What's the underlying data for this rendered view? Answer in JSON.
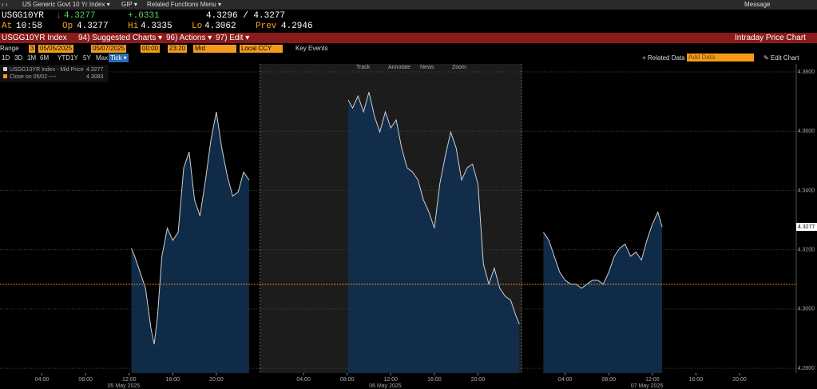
{
  "topbar": {
    "security": "US Generic Govt 10 Yr Index ▾",
    "gip": "GIP ▾",
    "related": "Related Functions Menu ▾",
    "message": "Message"
  },
  "quote": {
    "ticker": "USGG10YR",
    "arrow": "↓",
    "last": "4.3277",
    "change": "+.0331",
    "bid_ask": "4.3296 / 4.3277",
    "at_label": "At",
    "at": "10:58",
    "op_label": "Op",
    "op": "4.3277",
    "hi_label": "Hi",
    "hi": "4.3335",
    "lo_label": "Lo",
    "lo": "4.3062",
    "prev_label": "Prev",
    "prev": "4.2946"
  },
  "menu": {
    "security": "USGG10YR Index",
    "suggested": "94) Suggested Charts ▾",
    "actions": "96) Actions ▾",
    "edit": "97) Edit ▾",
    "title": "Intraday Price Chart"
  },
  "controls": {
    "range_label": "Range",
    "range": "3",
    "start": "05/05/2025",
    "end": "05/07/2025",
    "start_time": "00:00",
    "end_time": "23:20",
    "field": "Mid",
    "currency": "Local CCY",
    "key_events": "Key Events"
  },
  "periods": [
    "1D",
    "3D",
    "1M",
    "6M",
    "YTD",
    "1Y",
    "5Y",
    "Max",
    "Tick ▾"
  ],
  "right_tools": {
    "related": "+ Related Data",
    "add": "Add Data",
    "edit": "✎ Edit Chart"
  },
  "toolbar": [
    "Track",
    "Annotate",
    "News",
    "Zoom"
  ],
  "chart_data": {
    "type": "line",
    "xlim": [
      0.15,
      73.2
    ],
    "ylim": [
      4.2784,
      4.3827
    ],
    "yticks": [
      {
        "value": 4.28,
        "label": "4.2800"
      },
      {
        "value": 4.3,
        "label": "4.3000"
      },
      {
        "value": 4.32,
        "label": "4.3200"
      },
      {
        "value": 4.34,
        "label": "4.3400"
      },
      {
        "value": 4.36,
        "label": "4.3600"
      },
      {
        "value": 4.38,
        "label": "4.3800"
      }
    ],
    "xticks": [
      {
        "value": 4,
        "label": "04:00"
      },
      {
        "value": 8,
        "label": "08:00"
      },
      {
        "value": 12,
        "label": "12:00"
      },
      {
        "value": 16,
        "label": "16:00"
      },
      {
        "value": 20,
        "label": "20:00"
      },
      {
        "value": 28,
        "label": "04:00"
      },
      {
        "value": 32,
        "label": "08:00"
      },
      {
        "value": 36,
        "label": "12:00"
      },
      {
        "value": 40,
        "label": "16:00"
      },
      {
        "value": 44,
        "label": "20:00"
      },
      {
        "value": 52,
        "label": "04:00"
      },
      {
        "value": 56,
        "label": "08:00"
      },
      {
        "value": 60,
        "label": "12:00"
      },
      {
        "value": 64,
        "label": "16:00"
      },
      {
        "value": 68,
        "label": "20:00"
      }
    ],
    "day_labels": [
      {
        "value": 11.5,
        "label": "05 May 2025"
      },
      {
        "value": 35.5,
        "label": "06 May 2025"
      },
      {
        "value": 59.5,
        "label": "07 May 2025"
      }
    ],
    "x": [
      12.2,
      12.5,
      13,
      13.5,
      14,
      14.3,
      14.6,
      15,
      15.5,
      16,
      16.5,
      17,
      17.5,
      18,
      18.5,
      19,
      19.5,
      20,
      20.5,
      21,
      21.5,
      22,
      22.5,
      23,
      23.5,
      32.1,
      32.5,
      33,
      33.5,
      34,
      34.5,
      35,
      35.5,
      36,
      36.5,
      37,
      37.5,
      38,
      38.5,
      39,
      39.5,
      40,
      40.5,
      41,
      41.5,
      42,
      42.5,
      43,
      43.5,
      44,
      44.5,
      45,
      45.5,
      46,
      46.5,
      47,
      47.5,
      47.8,
      49,
      50,
      50.5,
      51,
      51.5,
      52,
      52.5,
      53,
      53.5,
      54,
      54.5,
      55,
      55.5,
      56,
      56.5,
      57,
      57.5,
      58,
      58.5,
      59,
      59.5,
      60,
      60.5,
      60.9
    ],
    "series": [
      {
        "name": "USGG10YR Index - Mid Price",
        "color": "#d0d0d0",
        "values": [
          4.3205,
          4.3178,
          4.3124,
          4.307,
          4.2935,
          4.2881,
          4.2976,
          4.3178,
          4.3273,
          4.3232,
          4.3259,
          4.3476,
          4.353,
          4.3368,
          4.3314,
          4.3435,
          4.357,
          4.3665,
          4.3543,
          4.3449,
          4.3381,
          4.3395,
          4.3462,
          4.3435,
          null,
          4.3705,
          4.3678,
          4.3719,
          4.3665,
          4.3732,
          4.3651,
          4.3597,
          4.3665,
          4.3611,
          4.3638,
          4.3543,
          4.3476,
          4.3462,
          4.3435,
          4.3368,
          4.3327,
          4.3273,
          4.3422,
          4.3516,
          4.3597,
          4.3543,
          4.3435,
          4.3476,
          4.3489,
          4.3422,
          4.3151,
          4.3084,
          4.3138,
          4.307,
          4.3043,
          4.303,
          4.2976,
          4.2949,
          null,
          4.3259,
          4.3232,
          4.3178,
          4.3124,
          4.3097,
          4.3084,
          4.3084,
          4.307,
          4.3084,
          4.3097,
          4.3097,
          4.3084,
          4.3124,
          4.3178,
          4.3205,
          4.3219,
          4.3178,
          4.3192,
          4.3165,
          4.3232,
          4.3286,
          4.3327,
          4.3277
        ]
      }
    ],
    "reference_line": {
      "name": "Close on 05/02 ----",
      "value": 4.3083,
      "color": "#f59b1c"
    },
    "grid": true
  }
}
